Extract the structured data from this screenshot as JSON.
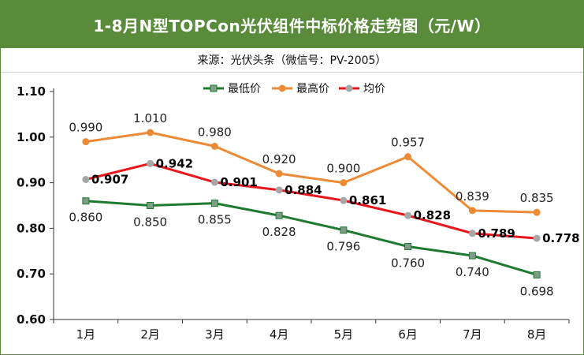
{
  "header": {
    "title": "1-8月N型TOPCon光伏组件中标价格走势图（元/W）",
    "source": "来源：光伏头条（微信号：PV-2005）"
  },
  "colors": {
    "header_bg": "#5a8b3b",
    "min_series": "#1e7a2e",
    "max_series": "#ed8a35",
    "avg_series": "#e8161b",
    "avg_marker": "#a6a6a6",
    "min_marker": "#7f9d86"
  },
  "chart_data": {
    "type": "line",
    "categories": [
      "1月",
      "2月",
      "3月",
      "4月",
      "5月",
      "6月",
      "7月",
      "8月"
    ],
    "series": [
      {
        "name": "最低价",
        "values": [
          0.86,
          0.85,
          0.855,
          0.828,
          0.796,
          0.76,
          0.74,
          0.698
        ],
        "labels": [
          "0.860",
          "0.850",
          "0.855",
          "0.828",
          "0.796",
          "0.760",
          "0.740",
          "0.698"
        ]
      },
      {
        "name": "最高价",
        "values": [
          0.99,
          1.01,
          0.98,
          0.92,
          0.9,
          0.957,
          0.839,
          0.835
        ],
        "labels": [
          "0.990",
          "1.010",
          "0.980",
          "0.920",
          "0.900",
          "0.957",
          "0.839",
          "0.835"
        ]
      },
      {
        "name": "均价",
        "values": [
          0.907,
          0.942,
          0.901,
          0.884,
          0.861,
          0.828,
          0.789,
          0.778
        ],
        "labels": [
          "0.907",
          "0.942",
          "0.901",
          "0.884",
          "0.861",
          "0.828",
          "0.789",
          "0.778"
        ]
      }
    ],
    "ylim": [
      0.6,
      1.1
    ],
    "yticks": [
      "0.60",
      "0.70",
      "0.80",
      "0.90",
      "1.00",
      "1.10"
    ],
    "legend": "top-center",
    "grid": false
  }
}
